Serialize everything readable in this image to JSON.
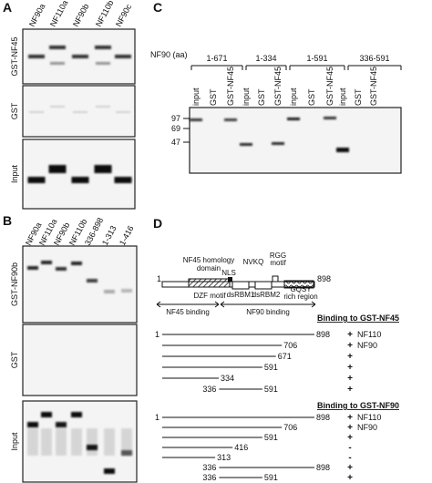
{
  "panel_a": {
    "label": "A",
    "lanes": [
      "NF90a",
      "NF110a",
      "NF90b",
      "NF110b",
      "NF90c"
    ],
    "rows": [
      "GST-NF45",
      "GST",
      "Input"
    ]
  },
  "panel_b": {
    "label": "B",
    "lanes": [
      "NF90a",
      "NF110a",
      "NF90b",
      "NF110b",
      "336-898",
      "1-313",
      "1-416"
    ],
    "rows": [
      "GST-NF90b",
      "GST",
      "Input"
    ]
  },
  "panel_c": {
    "label": "C",
    "axis_title": "NF90 (aa)",
    "groups": [
      {
        "name": "1-671",
        "lanes": [
          "input",
          "GST",
          "GST-NF45"
        ]
      },
      {
        "name": "1-334",
        "lanes": [
          "input",
          "GST",
          "GST-NF45"
        ]
      },
      {
        "name": "1-591",
        "lanes": [
          "input",
          "GST",
          "GST-NF45"
        ]
      },
      {
        "name": "336-591",
        "lanes": [
          "input",
          "GST",
          "GST-NF45"
        ]
      }
    ],
    "markers": [
      97,
      69,
      47
    ]
  },
  "panel_d": {
    "label": "D",
    "schematic": {
      "start": 1,
      "end": 898,
      "domains": {
        "homology": [
          "NF45 homology",
          "domain"
        ],
        "nls": "NLS",
        "nvkq": "NVKQ",
        "rgg": [
          "RGG",
          "motif"
        ],
        "dzf": "DZF motif",
        "dsrbm1": "dsRBM1",
        "dsrbm2": "dsRBM2",
        "gqsy": [
          "GQSY",
          "rich region"
        ]
      },
      "regions": [
        "NF45 binding",
        "NF90 binding"
      ]
    },
    "sets": [
      {
        "header": "Binding to GST-NF45",
        "constructs": [
          {
            "start": 1,
            "end": 898,
            "start_printed": true,
            "binding": "+",
            "note": "NF110"
          },
          {
            "start": 1,
            "end": 706,
            "start_printed": false,
            "binding": "+",
            "note": "NF90"
          },
          {
            "start": 1,
            "end": 671,
            "start_printed": false,
            "binding": "+"
          },
          {
            "start": 1,
            "end": 591,
            "start_printed": false,
            "binding": "+"
          },
          {
            "start": 1,
            "end": 334,
            "start_printed": false,
            "binding": "+"
          },
          {
            "start": 336,
            "end": 591,
            "start_printed": true,
            "binding": "+"
          }
        ]
      },
      {
        "header": "Binding to GST-NF90",
        "constructs": [
          {
            "start": 1,
            "end": 898,
            "start_printed": true,
            "binding": "+",
            "note": "NF110"
          },
          {
            "start": 1,
            "end": 706,
            "start_printed": false,
            "binding": "+",
            "note": "NF90"
          },
          {
            "start": 1,
            "end": 591,
            "start_printed": false,
            "binding": "+"
          },
          {
            "start": 1,
            "end": 416,
            "start_printed": false,
            "binding": "-"
          },
          {
            "start": 1,
            "end": 313,
            "start_printed": false,
            "binding": "-"
          },
          {
            "start": 336,
            "end": 898,
            "start_printed": true,
            "binding": "+"
          },
          {
            "start": 336,
            "end": 591,
            "start_printed": true,
            "binding": "+"
          }
        ]
      }
    ]
  }
}
